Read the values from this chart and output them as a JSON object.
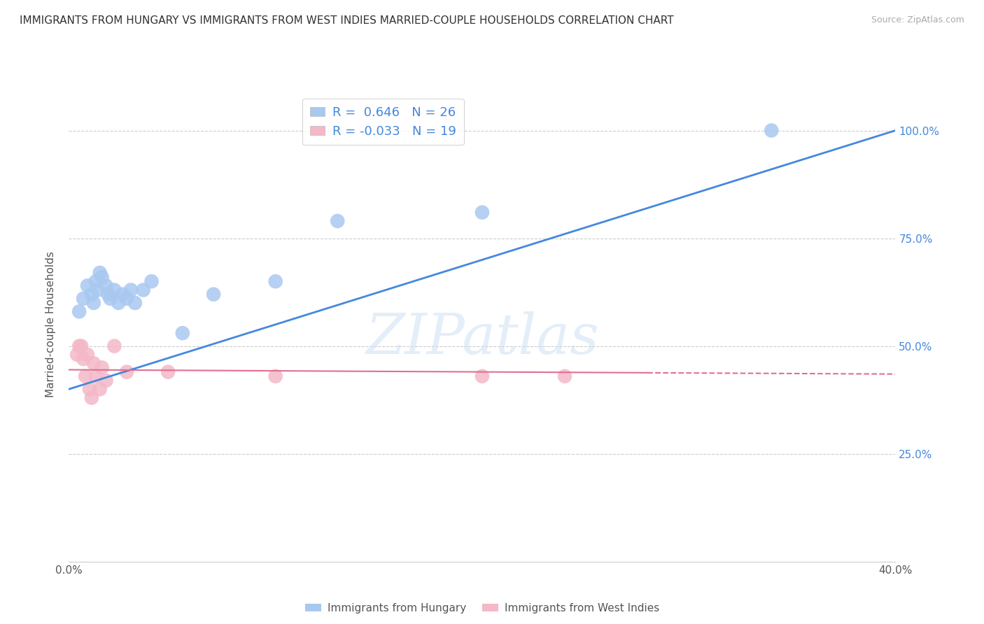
{
  "title": "IMMIGRANTS FROM HUNGARY VS IMMIGRANTS FROM WEST INDIES MARRIED-COUPLE HOUSEHOLDS CORRELATION CHART",
  "source": "Source: ZipAtlas.com",
  "ylabel": "Married-couple Households",
  "xlim": [
    0.0,
    0.4
  ],
  "ylim": [
    0.0,
    1.1
  ],
  "blue_R": 0.646,
  "blue_N": 26,
  "pink_R": -0.033,
  "pink_N": 19,
  "blue_color": "#a8c8f0",
  "pink_color": "#f4b8c8",
  "blue_line_color": "#4488dd",
  "pink_line_color": "#e07090",
  "watermark_text": "ZIPatlas",
  "legend_label_blue": "R =  0.646   N = 26",
  "legend_label_pink": "R = -0.033   N = 19",
  "bottom_legend_blue": "Immigrants from Hungary",
  "bottom_legend_pink": "Immigrants from West Indies",
  "blue_points_x": [
    0.005,
    0.007,
    0.009,
    0.011,
    0.012,
    0.013,
    0.014,
    0.015,
    0.016,
    0.018,
    0.019,
    0.02,
    0.022,
    0.024,
    0.026,
    0.028,
    0.03,
    0.032,
    0.036,
    0.04,
    0.055,
    0.07,
    0.1,
    0.13,
    0.2,
    0.34
  ],
  "blue_points_y": [
    0.58,
    0.61,
    0.64,
    0.62,
    0.6,
    0.65,
    0.63,
    0.67,
    0.66,
    0.64,
    0.62,
    0.61,
    0.63,
    0.6,
    0.62,
    0.61,
    0.63,
    0.6,
    0.63,
    0.65,
    0.53,
    0.62,
    0.65,
    0.79,
    0.81,
    1.0
  ],
  "pink_points_x": [
    0.004,
    0.005,
    0.006,
    0.007,
    0.008,
    0.009,
    0.01,
    0.011,
    0.012,
    0.013,
    0.015,
    0.016,
    0.018,
    0.022,
    0.028,
    0.048,
    0.1,
    0.2,
    0.24
  ],
  "pink_points_y": [
    0.48,
    0.5,
    0.5,
    0.47,
    0.43,
    0.48,
    0.4,
    0.38,
    0.46,
    0.43,
    0.4,
    0.45,
    0.42,
    0.5,
    0.44,
    0.44,
    0.43,
    0.43,
    0.43
  ],
  "blue_line_x0": 0.0,
  "blue_line_y0": 0.4,
  "blue_line_x1": 0.4,
  "blue_line_y1": 1.0,
  "pink_line_x0": 0.0,
  "pink_line_y0": 0.445,
  "pink_line_x1": 0.4,
  "pink_line_y1": 0.435,
  "pink_line_solid_end": 0.28,
  "ytick_positions": [
    0.25,
    0.5,
    0.75,
    1.0
  ],
  "ytick_labels": [
    "25.0%",
    "50.0%",
    "75.0%",
    "100.0%"
  ],
  "xtick_positions": [
    0.0,
    0.05,
    0.1,
    0.15,
    0.2,
    0.25,
    0.3,
    0.35,
    0.4
  ],
  "xtick_labels": [
    "0.0%",
    "",
    "",
    "",
    "",
    "",
    "",
    "",
    "40.0%"
  ]
}
